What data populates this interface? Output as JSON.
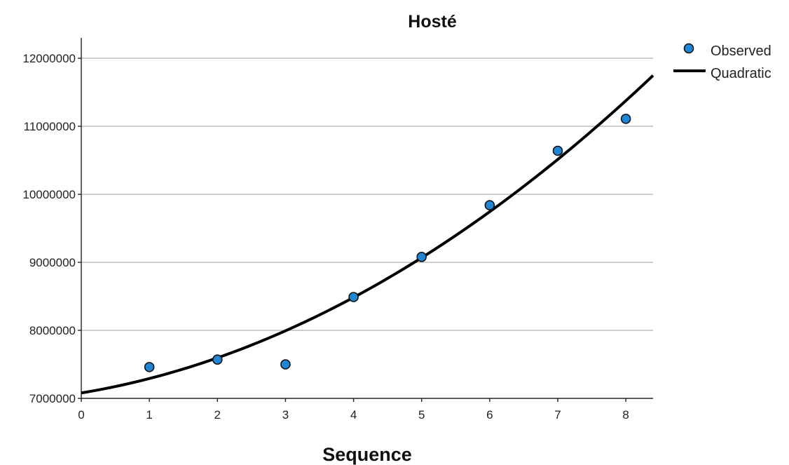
{
  "chart_data": {
    "type": "scatter",
    "title": "Hosté",
    "xlabel": "Sequence",
    "ylabel": "",
    "xlim": [
      0,
      8.4
    ],
    "ylim": [
      7000000,
      12300000
    ],
    "x_ticks": [
      "0",
      "1",
      "2",
      "3",
      "4",
      "5",
      "6",
      "7",
      "8"
    ],
    "y_ticks": [
      "7000000",
      "8000000",
      "9000000",
      "10000000",
      "11000000",
      "12000000"
    ],
    "grid": "horizontal",
    "legend": {
      "placement": "top-right",
      "observed_label": "Observed",
      "fit_label": "Quadratic"
    },
    "observed": {
      "x": [
        1,
        2,
        3,
        4,
        5,
        6,
        7,
        8
      ],
      "y": [
        7460000,
        7570000,
        7500000,
        8490000,
        9080000,
        9840000,
        10640000,
        11110000
      ]
    },
    "quadratic_fit": {
      "intercept": 7080000,
      "b1": 165000,
      "b2": 46500
    },
    "colors": {
      "observed": "#1f86d6",
      "fit": "#000000",
      "grid": "#b8b8b8"
    }
  }
}
